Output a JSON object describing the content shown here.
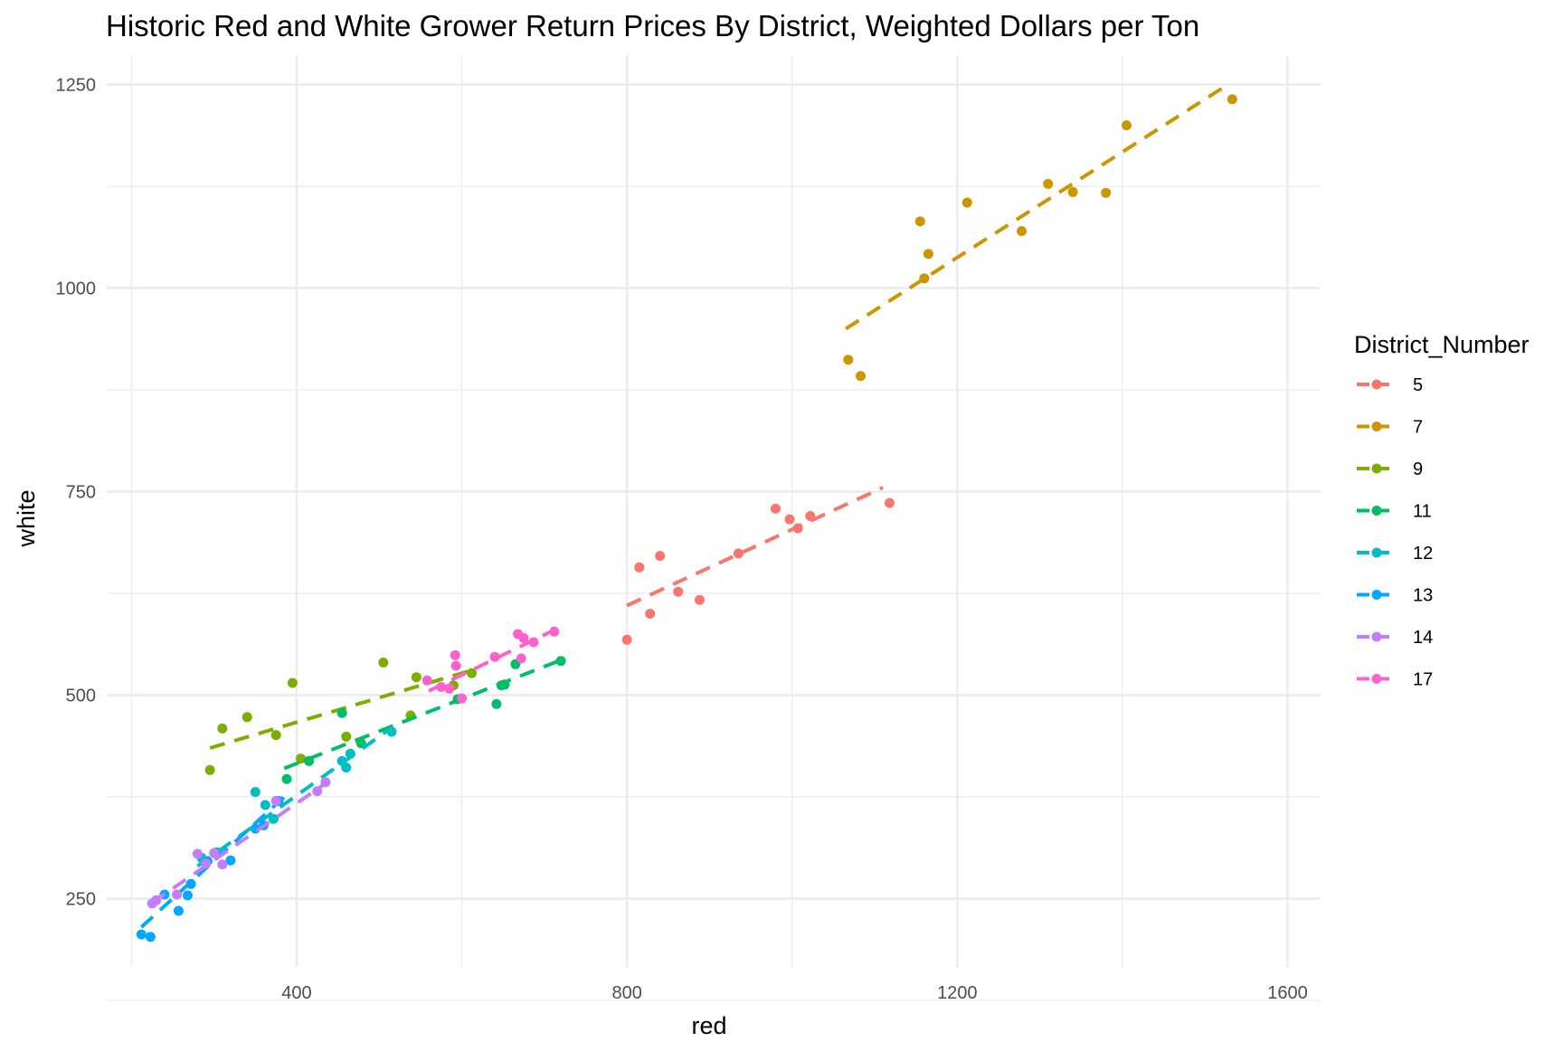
{
  "chart_data": {
    "type": "scatter",
    "title": "Historic Red and White Grower Return Prices By District, Weighted Dollars per Ton",
    "xlabel": "red",
    "ylabel": "white",
    "xlim": [
      170,
      1640
    ],
    "ylim": [
      165,
      1285
    ],
    "x_ticks": [
      400,
      800,
      1200,
      1600
    ],
    "y_ticks": [
      250,
      500,
      750,
      1000,
      1250
    ],
    "x_tick_labels": [
      "400",
      "800",
      "1200",
      "1600"
    ],
    "y_tick_labels": [
      "250",
      "500",
      "750",
      "1000",
      "1250"
    ],
    "grid": true,
    "legend": {
      "title": "District_Number",
      "position": "right"
    },
    "series": [
      {
        "name": "5",
        "color": "#F8766D",
        "trend": [
          [
            800,
            610
          ],
          [
            1110,
            755
          ]
        ],
        "points": [
          [
            800,
            568
          ],
          [
            815,
            657
          ],
          [
            828,
            600
          ],
          [
            840,
            671
          ],
          [
            862,
            627
          ],
          [
            888,
            617
          ],
          [
            935,
            674
          ],
          [
            980,
            729
          ],
          [
            997,
            716
          ],
          [
            1007,
            705
          ],
          [
            1022,
            720
          ],
          [
            1118,
            736
          ]
        ]
      },
      {
        "name": "7",
        "color": "#CD9600",
        "trend": [
          [
            1065,
            950
          ],
          [
            1520,
            1245
          ]
        ],
        "points": [
          [
            1068,
            912
          ],
          [
            1083,
            892
          ],
          [
            1155,
            1082
          ],
          [
            1160,
            1012
          ],
          [
            1165,
            1042
          ],
          [
            1212,
            1105
          ],
          [
            1278,
            1070
          ],
          [
            1310,
            1128
          ],
          [
            1340,
            1118
          ],
          [
            1380,
            1117
          ],
          [
            1405,
            1200
          ],
          [
            1533,
            1232
          ]
        ]
      },
      {
        "name": "9",
        "color": "#7CAE00",
        "trend": [
          [
            295,
            435
          ],
          [
            610,
            530
          ]
        ],
        "points": [
          [
            295,
            408
          ],
          [
            310,
            459
          ],
          [
            340,
            473
          ],
          [
            375,
            451
          ],
          [
            395,
            515
          ],
          [
            405,
            422
          ],
          [
            460,
            449
          ],
          [
            505,
            540
          ],
          [
            538,
            475
          ],
          [
            545,
            522
          ],
          [
            590,
            512
          ],
          [
            612,
            527
          ]
        ]
      },
      {
        "name": "11",
        "color": "#00BE67",
        "trend": [
          [
            385,
            410
          ],
          [
            720,
            543
          ]
        ],
        "points": [
          [
            388,
            397
          ],
          [
            415,
            419
          ],
          [
            455,
            478
          ],
          [
            478,
            441
          ],
          [
            595,
            495
          ],
          [
            642,
            489
          ],
          [
            648,
            512
          ],
          [
            652,
            513
          ],
          [
            665,
            538
          ],
          [
            720,
            542
          ]
        ]
      },
      {
        "name": "12",
        "color": "#00BFC4",
        "trend": [
          [
            280,
            290
          ],
          [
            515,
            460
          ]
        ],
        "points": [
          [
            285,
            300
          ],
          [
            303,
            307
          ],
          [
            350,
            381
          ],
          [
            362,
            365
          ],
          [
            372,
            348
          ],
          [
            378,
            370
          ],
          [
            455,
            419
          ],
          [
            460,
            411
          ],
          [
            465,
            428
          ],
          [
            515,
            455
          ]
        ]
      },
      {
        "name": "13",
        "color": "#00A9FF",
        "trend": [
          [
            212,
            215
          ],
          [
            385,
            375
          ]
        ],
        "points": [
          [
            212,
            206
          ],
          [
            223,
            203
          ],
          [
            240,
            255
          ],
          [
            257,
            235
          ],
          [
            268,
            254
          ],
          [
            272,
            268
          ],
          [
            292,
            296
          ],
          [
            320,
            297
          ],
          [
            350,
            336
          ],
          [
            360,
            340
          ],
          [
            378,
            370
          ]
        ]
      },
      {
        "name": "14",
        "color": "#C77CFF",
        "trend": [
          [
            225,
            245
          ],
          [
            440,
            395
          ]
        ],
        "points": [
          [
            225,
            244
          ],
          [
            230,
            248
          ],
          [
            255,
            255
          ],
          [
            280,
            305
          ],
          [
            290,
            293
          ],
          [
            300,
            306
          ],
          [
            310,
            292
          ],
          [
            375,
            370
          ],
          [
            425,
            382
          ],
          [
            435,
            393
          ]
        ]
      },
      {
        "name": "17",
        "color": "#FF61CC",
        "trend": [
          [
            560,
            505
          ],
          [
            712,
            580
          ]
        ],
        "points": [
          [
            558,
            518
          ],
          [
            575,
            510
          ],
          [
            585,
            508
          ],
          [
            592,
            549
          ],
          [
            593,
            536
          ],
          [
            600,
            496
          ],
          [
            640,
            547
          ],
          [
            668,
            575
          ],
          [
            672,
            545
          ],
          [
            675,
            570
          ],
          [
            687,
            565
          ],
          [
            712,
            578
          ]
        ]
      }
    ]
  }
}
